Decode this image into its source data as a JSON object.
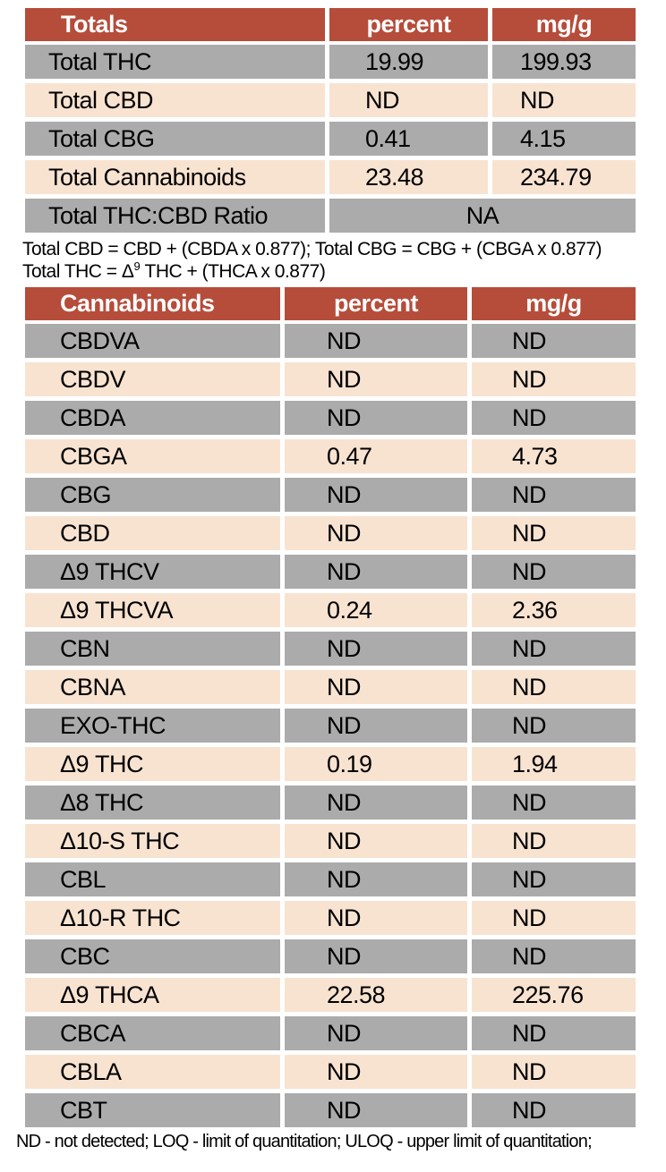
{
  "colors": {
    "header_bg": "#b64c3a",
    "row_gray": "#ababab",
    "row_peach": "#f8e3d1",
    "header_text": "#ffffff"
  },
  "totals_table": {
    "headers": [
      "Totals",
      "percent",
      "mg/g"
    ],
    "rows": [
      {
        "name": "Total THC",
        "percent": "19.99",
        "mg_g": "199.93"
      },
      {
        "name": "Total CBD",
        "percent": "ND",
        "mg_g": "ND"
      },
      {
        "name": "Total CBG",
        "percent": "0.41",
        "mg_g": "4.15"
      },
      {
        "name": "Total Cannabinoids",
        "percent": "23.48",
        "mg_g": "234.79"
      }
    ],
    "ratio_row": {
      "name": "Total THC:CBD Ratio",
      "value": "NA"
    }
  },
  "footnotes": {
    "line1": "Total CBD = CBD + (CBDA x 0.877); Total CBG = CBG + (CBGA x 0.877)",
    "line2_prefix": "Total THC = Δ",
    "line2_sup": "9",
    "line2_suffix": " THC + (THCA x 0.877)"
  },
  "cannabinoids_table": {
    "headers": [
      "Cannabinoids",
      "percent",
      "mg/g"
    ],
    "rows": [
      {
        "name": "CBDVA",
        "percent": "ND",
        "mg_g": "ND"
      },
      {
        "name": "CBDV",
        "percent": "ND",
        "mg_g": "ND"
      },
      {
        "name": "CBDA",
        "percent": "ND",
        "mg_g": "ND"
      },
      {
        "name": "CBGA",
        "percent": "0.47",
        "mg_g": "4.73"
      },
      {
        "name": "CBG",
        "percent": "ND",
        "mg_g": "ND"
      },
      {
        "name": "CBD",
        "percent": "ND",
        "mg_g": "ND"
      },
      {
        "name": "Δ9 THCV",
        "percent": "ND",
        "mg_g": "ND"
      },
      {
        "name": "Δ9 THCVA",
        "percent": "0.24",
        "mg_g": "2.36"
      },
      {
        "name": "CBN",
        "percent": "ND",
        "mg_g": "ND"
      },
      {
        "name": "CBNA",
        "percent": "ND",
        "mg_g": "ND"
      },
      {
        "name": "EXO-THC",
        "percent": "ND",
        "mg_g": "ND"
      },
      {
        "name": "Δ9 THC",
        "percent": "0.19",
        "mg_g": "1.94"
      },
      {
        "name": "Δ8 THC",
        "percent": "ND",
        "mg_g": "ND"
      },
      {
        "name": "Δ10-S THC",
        "percent": "ND",
        "mg_g": "ND"
      },
      {
        "name": "CBL",
        "percent": "ND",
        "mg_g": "ND"
      },
      {
        "name": "Δ10-R THC",
        "percent": "ND",
        "mg_g": "ND"
      },
      {
        "name": "CBC",
        "percent": "ND",
        "mg_g": "ND"
      },
      {
        "name": "Δ9 THCA",
        "percent": "22.58",
        "mg_g": "225.76"
      },
      {
        "name": "CBCA",
        "percent": "ND",
        "mg_g": "ND"
      },
      {
        "name": "CBLA",
        "percent": "ND",
        "mg_g": "ND"
      },
      {
        "name": "CBT",
        "percent": "ND",
        "mg_g": "ND"
      }
    ]
  },
  "footer": "ND - not detected; LOQ - limit of quantitation; ULOQ - upper limit of quantitation;"
}
